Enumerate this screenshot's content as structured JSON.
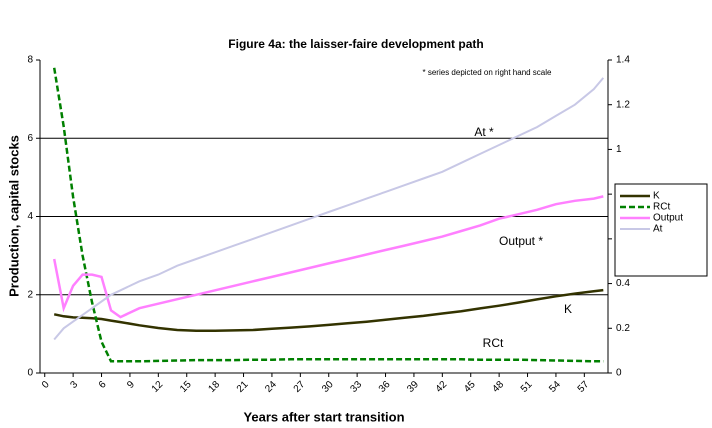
{
  "chart_data": {
    "type": "line",
    "title": "Figure 4a: the laisser-faire development path",
    "x_label": "Years after start transition",
    "y_label": "Production, capital stocks",
    "annotations": [
      "* series depicted on right hand scale",
      "At *",
      "Output *",
      "K",
      "RCt"
    ],
    "x": [
      1,
      2,
      3,
      4,
      5,
      6,
      7,
      8,
      10,
      12,
      14,
      16,
      18,
      20,
      22,
      24,
      26,
      28,
      30,
      32,
      34,
      36,
      38,
      40,
      42,
      44,
      46,
      48,
      50,
      52,
      54,
      56,
      58,
      59
    ],
    "xlim": [
      -0.5,
      59.5
    ],
    "xticks": [
      0,
      3,
      6,
      9,
      12,
      15,
      18,
      21,
      24,
      27,
      30,
      33,
      36,
      39,
      42,
      45,
      48,
      51,
      54,
      57
    ],
    "ylim": [
      0,
      8
    ],
    "yticks": [
      0,
      2,
      4,
      6,
      8
    ],
    "y2lim": [
      0,
      1.4
    ],
    "y2ticks": [
      0,
      0.2,
      0.4,
      0.6,
      0.8,
      1,
      1.2,
      1.4
    ],
    "grid": true,
    "legend": "right",
    "series": [
      {
        "name": "K",
        "color": "#333300",
        "style": "solid",
        "width": 2.5,
        "values": [
          1.5,
          1.45,
          1.42,
          1.41,
          1.4,
          1.38,
          1.34,
          1.3,
          1.22,
          1.15,
          1.1,
          1.08,
          1.08,
          1.09,
          1.1,
          1.13,
          1.16,
          1.19,
          1.23,
          1.27,
          1.31,
          1.36,
          1.41,
          1.46,
          1.52,
          1.58,
          1.65,
          1.72,
          1.8,
          1.88,
          1.96,
          2.03,
          2.09,
          2.12
        ]
      },
      {
        "name": "RCt",
        "color": "#008000",
        "style": "dashed",
        "width": 2.5,
        "values": [
          7.8,
          6.3,
          4.5,
          3.0,
          1.8,
          0.8,
          0.3,
          0.3,
          0.3,
          0.31,
          0.32,
          0.33,
          0.33,
          0.33,
          0.34,
          0.34,
          0.35,
          0.35,
          0.35,
          0.35,
          0.35,
          0.35,
          0.35,
          0.35,
          0.35,
          0.35,
          0.34,
          0.34,
          0.34,
          0.33,
          0.32,
          0.31,
          0.3,
          0.3
        ]
      },
      {
        "name": "Output",
        "color": "#ff80ff",
        "style": "solid",
        "width": 2.5,
        "axis": "y2",
        "values": [
          0.51,
          0.29,
          0.39,
          0.44,
          0.44,
          0.43,
          0.28,
          0.25,
          0.29,
          0.31,
          0.33,
          0.35,
          0.37,
          0.39,
          0.41,
          0.43,
          0.45,
          0.47,
          0.49,
          0.51,
          0.53,
          0.55,
          0.57,
          0.59,
          0.61,
          0.635,
          0.66,
          0.69,
          0.71,
          0.73,
          0.755,
          0.77,
          0.78,
          0.79
        ]
      },
      {
        "name": "At",
        "color": "#c8c8e6",
        "style": "solid",
        "width": 2,
        "axis": "y2",
        "values": [
          0.15,
          0.2,
          0.23,
          0.26,
          0.29,
          0.32,
          0.35,
          0.37,
          0.41,
          0.44,
          0.48,
          0.51,
          0.54,
          0.57,
          0.6,
          0.63,
          0.66,
          0.69,
          0.72,
          0.75,
          0.78,
          0.81,
          0.84,
          0.87,
          0.9,
          0.94,
          0.98,
          1.02,
          1.06,
          1.1,
          1.15,
          1.2,
          1.27,
          1.32
        ]
      }
    ]
  }
}
